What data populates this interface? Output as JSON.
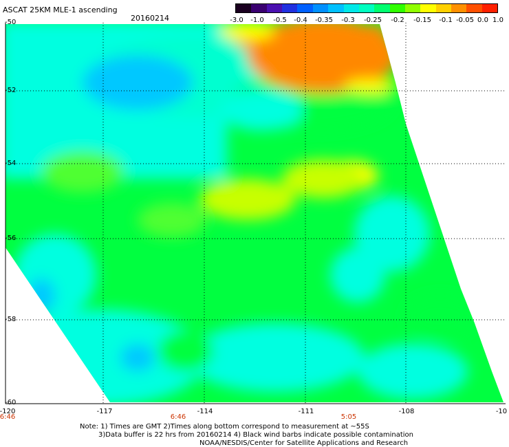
{
  "header": {
    "title": "ASCAT 25KM MLE-1 ascending",
    "date": "20160214"
  },
  "colorbar": {
    "labels": [
      "-3.0",
      "-1.0",
      "-0.5",
      "-0.4",
      "-0.35",
      "-0.3",
      "-0.25",
      "-0.2",
      "-0.15",
      "-0.1",
      "-0.05",
      "0.0",
      "1.0"
    ],
    "colors": [
      "#1a0020",
      "#3a0070",
      "#4a10b0",
      "#2030e0",
      "#0060ff",
      "#0090ff",
      "#00c0ff",
      "#00e8e8",
      "#00ffc0",
      "#00ff70",
      "#30ff00",
      "#90ff00",
      "#ffff00",
      "#ffd000",
      "#ff9000",
      "#ff5000",
      "#ff2000"
    ]
  },
  "map": {
    "lat_labels": [
      "-50",
      "-52",
      "-54",
      "-56",
      "-58",
      "-60"
    ],
    "lon_labels": [
      "-120",
      "-117",
      "-114",
      "-111",
      "-108",
      "-10"
    ],
    "time_labels": [
      "6:46",
      "6:46",
      "5:05"
    ],
    "colors": {
      "cyan": "#00ffe0",
      "cyan_light": "#00ffd0",
      "green": "#00ff40",
      "green_light": "#50ff30",
      "yellow_green": "#c8ff00",
      "yellow": "#ffff00",
      "orange": "#ff8800",
      "blue_light": "#00c8ff",
      "blue": "#0050ff"
    }
  },
  "notes": {
    "line1": "Note: 1) Times are GMT  2)Times along bottom correspond to measurement at ~55S",
    "line2": "3)Data buffer is 22 hrs from 20160214  4) Black wind barbs indicate possible contamination",
    "line3": "NOAA/NESDIS/Center for Satellite Applications and Research"
  }
}
